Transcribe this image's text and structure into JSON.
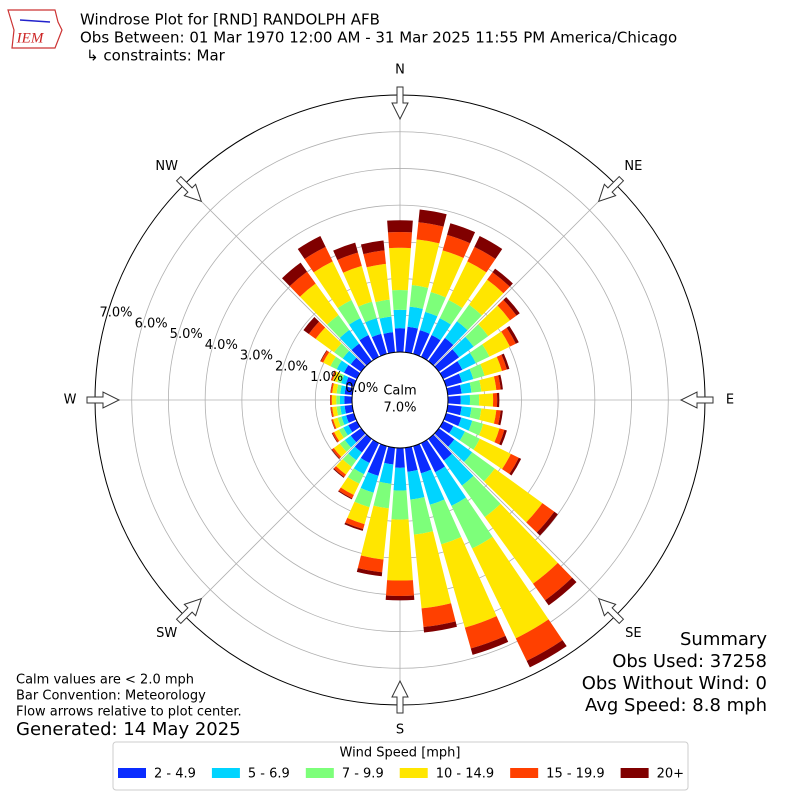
{
  "chart_data": {
    "type": "windrose",
    "logo": "IEM",
    "title": "Windrose Plot for [RND] RANDOLPH AFB",
    "subtitle": "Obs Between: 01 Mar 1970 12:00 AM - 31 Mar 2025 11:55 PM America/Chicago",
    "constraints": "↳ constraints: Mar",
    "directions": [
      0,
      10,
      20,
      30,
      40,
      50,
      60,
      70,
      80,
      90,
      100,
      110,
      120,
      130,
      140,
      150,
      160,
      170,
      180,
      190,
      200,
      210,
      220,
      230,
      240,
      250,
      260,
      270,
      280,
      290,
      300,
      310,
      320,
      330,
      340,
      350
    ],
    "compass": [
      "N",
      "NE",
      "E",
      "SE",
      "S",
      "SW",
      "W",
      "NW"
    ],
    "rlim": [
      0,
      7
    ],
    "rticks": [
      {
        "value": 0,
        "label": "0.0%"
      },
      {
        "value": 1,
        "label": "1.0%"
      },
      {
        "value": 2,
        "label": "2.0%"
      },
      {
        "value": 3,
        "label": "3.0%"
      },
      {
        "value": 4,
        "label": "4.0%"
      },
      {
        "value": 5,
        "label": "5.0%"
      },
      {
        "value": 6,
        "label": "6.0%"
      },
      {
        "value": 7,
        "label": "7.0%"
      }
    ],
    "calm": {
      "label": "Calm",
      "value": 7.0,
      "value_label": "7.0%"
    },
    "legend_title": "Wind Speed [mph]",
    "series": [
      {
        "name": "2 - 4.9",
        "color": "#0a2cff",
        "values": [
          0.65,
          0.7,
          0.67,
          0.66,
          0.78,
          0.68,
          0.58,
          0.45,
          0.38,
          0.35,
          0.38,
          0.43,
          0.31,
          0.52,
          0.73,
          0.88,
          0.77,
          0.66,
          0.54,
          0.46,
          0.84,
          0.6,
          0.46,
          0.35,
          0.26,
          0.22,
          0.21,
          0.21,
          0.21,
          0.23,
          0.39,
          0.35,
          0.59,
          0.66,
          0.57,
          0.55
        ]
      },
      {
        "name": "5 - 6.9",
        "color": "#00d4ff",
        "values": [
          0.5,
          0.55,
          0.52,
          0.51,
          0.56,
          0.49,
          0.41,
          0.32,
          0.27,
          0.25,
          0.27,
          0.31,
          0.35,
          0.6,
          0.84,
          1.02,
          0.89,
          0.76,
          0.62,
          0.53,
          0.48,
          0.34,
          0.26,
          0.2,
          0.15,
          0.13,
          0.12,
          0.12,
          0.12,
          0.13,
          0.22,
          0.27,
          0.46,
          0.51,
          0.44,
          0.43
        ]
      },
      {
        "name": "7 - 9.9",
        "color": "#7dff7a",
        "values": [
          0.54,
          0.59,
          0.56,
          0.55,
          0.56,
          0.49,
          0.41,
          0.32,
          0.27,
          0.25,
          0.27,
          0.31,
          0.45,
          0.76,
          1.06,
          1.29,
          1.12,
          0.96,
          0.79,
          0.67,
          0.41,
          0.29,
          0.22,
          0.17,
          0.13,
          0.11,
          0.1,
          0.1,
          0.1,
          0.11,
          0.19,
          0.29,
          0.5,
          0.55,
          0.47,
          0.46
        ]
      },
      {
        "name": "10 - 14.9",
        "color": "#ffe600",
        "values": [
          1.15,
          1.25,
          1.18,
          1.17,
          0.84,
          0.73,
          0.62,
          0.49,
          0.41,
          0.38,
          0.41,
          0.46,
          0.94,
          1.6,
          2.24,
          2.72,
          2.36,
          2.02,
          1.66,
          1.4,
          0.48,
          0.34,
          0.26,
          0.2,
          0.15,
          0.13,
          0.12,
          0.12,
          0.12,
          0.13,
          0.22,
          0.62,
          1.06,
          1.17,
          1.01,
          0.98
        ]
      },
      {
        "name": "15 - 19.9",
        "color": "#ff4000",
        "values": [
          0.43,
          0.47,
          0.44,
          0.44,
          0.25,
          0.22,
          0.18,
          0.14,
          0.12,
          0.11,
          0.12,
          0.14,
          0.24,
          0.4,
          0.56,
          0.68,
          0.59,
          0.51,
          0.42,
          0.35,
          0.14,
          0.1,
          0.08,
          0.06,
          0.05,
          0.04,
          0.04,
          0.04,
          0.04,
          0.04,
          0.07,
          0.23,
          0.4,
          0.44,
          0.38,
          0.37
        ]
      },
      {
        "name": "20+",
        "color": "#800000",
        "values": [
          0.32,
          0.35,
          0.33,
          0.33,
          0.12,
          0.11,
          0.09,
          0.07,
          0.06,
          0.06,
          0.06,
          0.07,
          0.07,
          0.12,
          0.17,
          0.2,
          0.18,
          0.15,
          0.12,
          0.11,
          0.05,
          0.03,
          0.03,
          0.02,
          0.02,
          0.01,
          0.01,
          0.01,
          0.01,
          0.01,
          0.02,
          0.18,
          0.3,
          0.33,
          0.28,
          0.27
        ]
      }
    ],
    "summary": [
      "Summary",
      "Obs Used: 37258",
      "Obs Without Wind: 0",
      "Avg Speed: 8.8 mph"
    ],
    "notes": [
      "Calm values are < 2.0 mph",
      "Bar Convention: Meteorology",
      "Flow arrows relative to plot center."
    ],
    "generated": "Generated: 14 May 2025"
  }
}
